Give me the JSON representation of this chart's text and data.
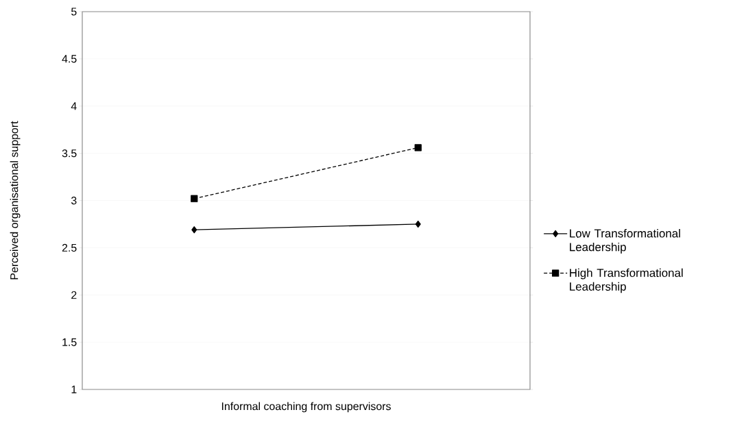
{
  "chart_data": {
    "type": "line",
    "xlabel": "Informal coaching from supervisors",
    "ylabel": "Perceived organisational support",
    "categories": [
      null,
      null
    ],
    "series": [
      {
        "name": "Low Transformational Leadership",
        "color": "#000000",
        "values": [
          2.69,
          2.75
        ],
        "marker": "diamond",
        "line_style": "solid"
      },
      {
        "name": "High Transformational Leadership",
        "color": "#000000",
        "values": [
          3.02,
          3.56
        ],
        "marker": "square",
        "line_style": "dashed"
      }
    ],
    "ylim": [
      1,
      5
    ],
    "yticks": [
      1,
      1.5,
      2,
      2.5,
      3,
      3.5,
      4,
      4.5,
      5
    ],
    "grid": "y",
    "legend": "right",
    "tick_labels": "y"
  }
}
